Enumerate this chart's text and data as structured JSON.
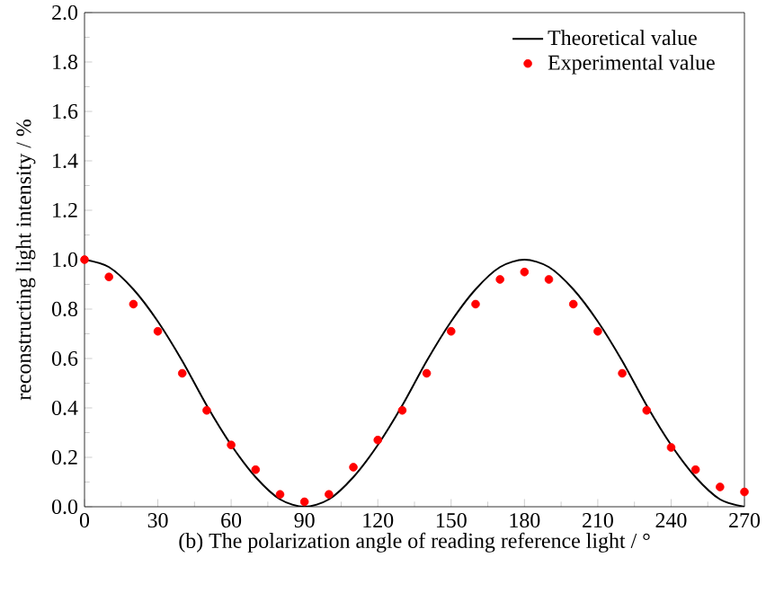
{
  "chart_data": {
    "type": "line",
    "xlabel": "(b) The polarization angle of reading reference light / °",
    "ylabel": "reconstructing light intensity / %",
    "x": [
      0,
      10,
      20,
      30,
      40,
      50,
      60,
      70,
      80,
      90,
      100,
      110,
      120,
      130,
      140,
      150,
      160,
      170,
      180,
      190,
      200,
      210,
      220,
      230,
      240,
      250,
      260,
      270
    ],
    "series": [
      {
        "name": "Theoretical value",
        "color": "#000000",
        "marker": "none",
        "values": [
          1.0,
          0.97,
          0.88,
          0.75,
          0.59,
          0.41,
          0.25,
          0.12,
          0.03,
          0.0,
          0.03,
          0.12,
          0.25,
          0.41,
          0.59,
          0.75,
          0.88,
          0.97,
          1.0,
          0.97,
          0.88,
          0.75,
          0.59,
          0.41,
          0.25,
          0.12,
          0.03,
          0.0
        ]
      },
      {
        "name": "Experimental value",
        "type": "scatter",
        "color": "#ff0000",
        "marker": "circle",
        "values": [
          1.0,
          0.93,
          0.82,
          0.71,
          0.54,
          0.39,
          0.25,
          0.15,
          0.05,
          0.02,
          0.05,
          0.16,
          0.27,
          0.39,
          0.54,
          0.71,
          0.82,
          0.92,
          0.95,
          0.92,
          0.82,
          0.71,
          0.54,
          0.39,
          0.24,
          0.15,
          0.08,
          0.06
        ]
      }
    ],
    "xlim": [
      0,
      270
    ],
    "xticks": [
      0,
      30,
      60,
      90,
      120,
      150,
      180,
      210,
      240,
      270
    ],
    "ylim": [
      0,
      2.0
    ],
    "yticks": [
      {
        "value": 0,
        "label": "0.0"
      },
      0.2,
      0.4,
      0.6,
      0.8,
      {
        "value": 1.0,
        "label": "1.0"
      },
      1.2,
      1.4,
      1.6,
      1.8,
      {
        "value": 2.0,
        "label": "2.0"
      }
    ],
    "legend": "top right",
    "grid": false
  }
}
